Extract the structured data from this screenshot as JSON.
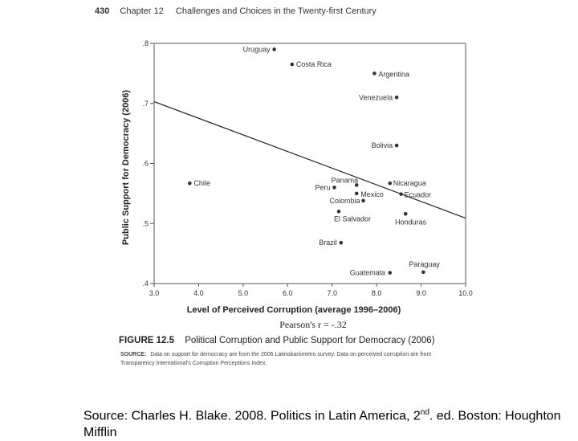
{
  "header": {
    "page_number": "430",
    "chapter": "Chapter 12",
    "chapter_title": "Challenges and Choices in the Twenty-first Century"
  },
  "chart_data": {
    "type": "scatter",
    "xlabel": "Level of Perceived Corruption (average 1996–2006)",
    "ylabel": "Public Support for Democracy (2006)",
    "xlim": [
      3.0,
      10.0
    ],
    "ylim": [
      0.4,
      0.8
    ],
    "x_ticks": [
      "3.0",
      "4.0",
      "5.0",
      "6.0",
      "7.0",
      "8.0",
      "9.0",
      "10.0"
    ],
    "y_ticks": [
      ".4",
      ".5",
      ".6",
      ".7",
      ".8"
    ],
    "grid": false,
    "legend": "none",
    "stat": "Pearson's r = -.32",
    "trendline": {
      "x": [
        3.0,
        10.0
      ],
      "y": [
        0.703,
        0.509
      ]
    },
    "points": [
      {
        "label": "Uruguay",
        "x": 5.7,
        "y": 0.79
      },
      {
        "label": "Costa Rica",
        "x": 6.1,
        "y": 0.765
      },
      {
        "label": "Argentina",
        "x": 7.95,
        "y": 0.75
      },
      {
        "label": "Venezuela",
        "x": 8.45,
        "y": 0.71
      },
      {
        "label": "Bolivia",
        "x": 8.45,
        "y": 0.63
      },
      {
        "label": "Chile",
        "x": 3.8,
        "y": 0.567
      },
      {
        "label": "Panama",
        "x": 7.55,
        "y": 0.564
      },
      {
        "label": "Nicaragua",
        "x": 8.3,
        "y": 0.567
      },
      {
        "label": "Peru",
        "x": 7.05,
        "y": 0.56
      },
      {
        "label": "Mexico",
        "x": 7.55,
        "y": 0.55
      },
      {
        "label": "Ecuador",
        "x": 8.55,
        "y": 0.549
      },
      {
        "label": "Colombia",
        "x": 7.7,
        "y": 0.538
      },
      {
        "label": "El Salvador",
        "x": 7.15,
        "y": 0.52
      },
      {
        "label": "Honduras",
        "x": 8.65,
        "y": 0.516
      },
      {
        "label": "Brazil",
        "x": 7.2,
        "y": 0.468
      },
      {
        "label": "Paraguay",
        "x": 9.05,
        "y": 0.419
      },
      {
        "label": "Guatemala",
        "x": 8.3,
        "y": 0.418
      }
    ]
  },
  "figure": {
    "label": "FIGURE 12.5",
    "title": "Political Corruption and Public Support for Democracy (2006)",
    "source_label": "SOURCE:",
    "source_text": "Data on support for democracy are from the 2006 Latinobarómetro survey. Data on perceived corruption are from Transparency International's Corruption Perceptions Index."
  },
  "caption": {
    "text": "Source: Charles H. Blake. 2008. Politics in Latin America, 2",
    "superscript": "nd",
    "text_after": ". ed. Boston: Houghton Mifflin"
  }
}
